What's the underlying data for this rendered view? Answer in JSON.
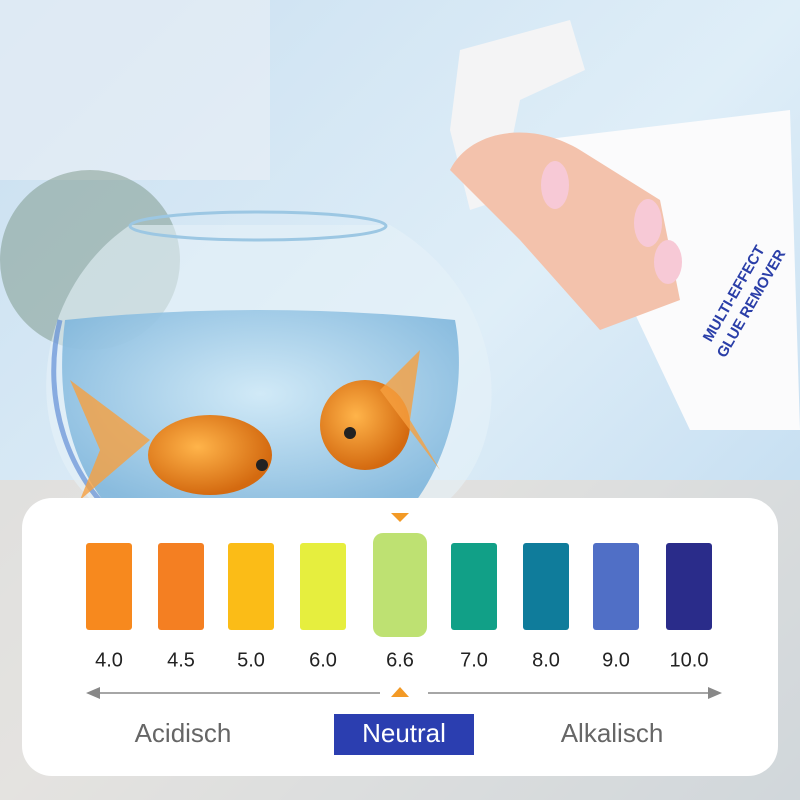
{
  "product": {
    "label_line1": "MULTI-EFFECT",
    "label_line2": "GLUE REMOVER"
  },
  "scale": {
    "items": [
      {
        "label": "4.0",
        "color": "#f7891e"
      },
      {
        "label": "4.5",
        "color": "#f47f22"
      },
      {
        "label": "5.0",
        "color": "#fbbc17"
      },
      {
        "label": "6.0",
        "color": "#e6ee3e"
      },
      {
        "label": "6.6",
        "color": "#bee172",
        "selected": true
      },
      {
        "label": "7.0",
        "color": "#11a087"
      },
      {
        "label": "8.0",
        "color": "#0f7c9b"
      },
      {
        "label": "9.0",
        "color": "#506fc6"
      },
      {
        "label": "10.0",
        "color": "#2a2c8a"
      }
    ],
    "left_label": "Acidisch",
    "center_label": "Neutral",
    "right_label": "Alkalisch"
  }
}
